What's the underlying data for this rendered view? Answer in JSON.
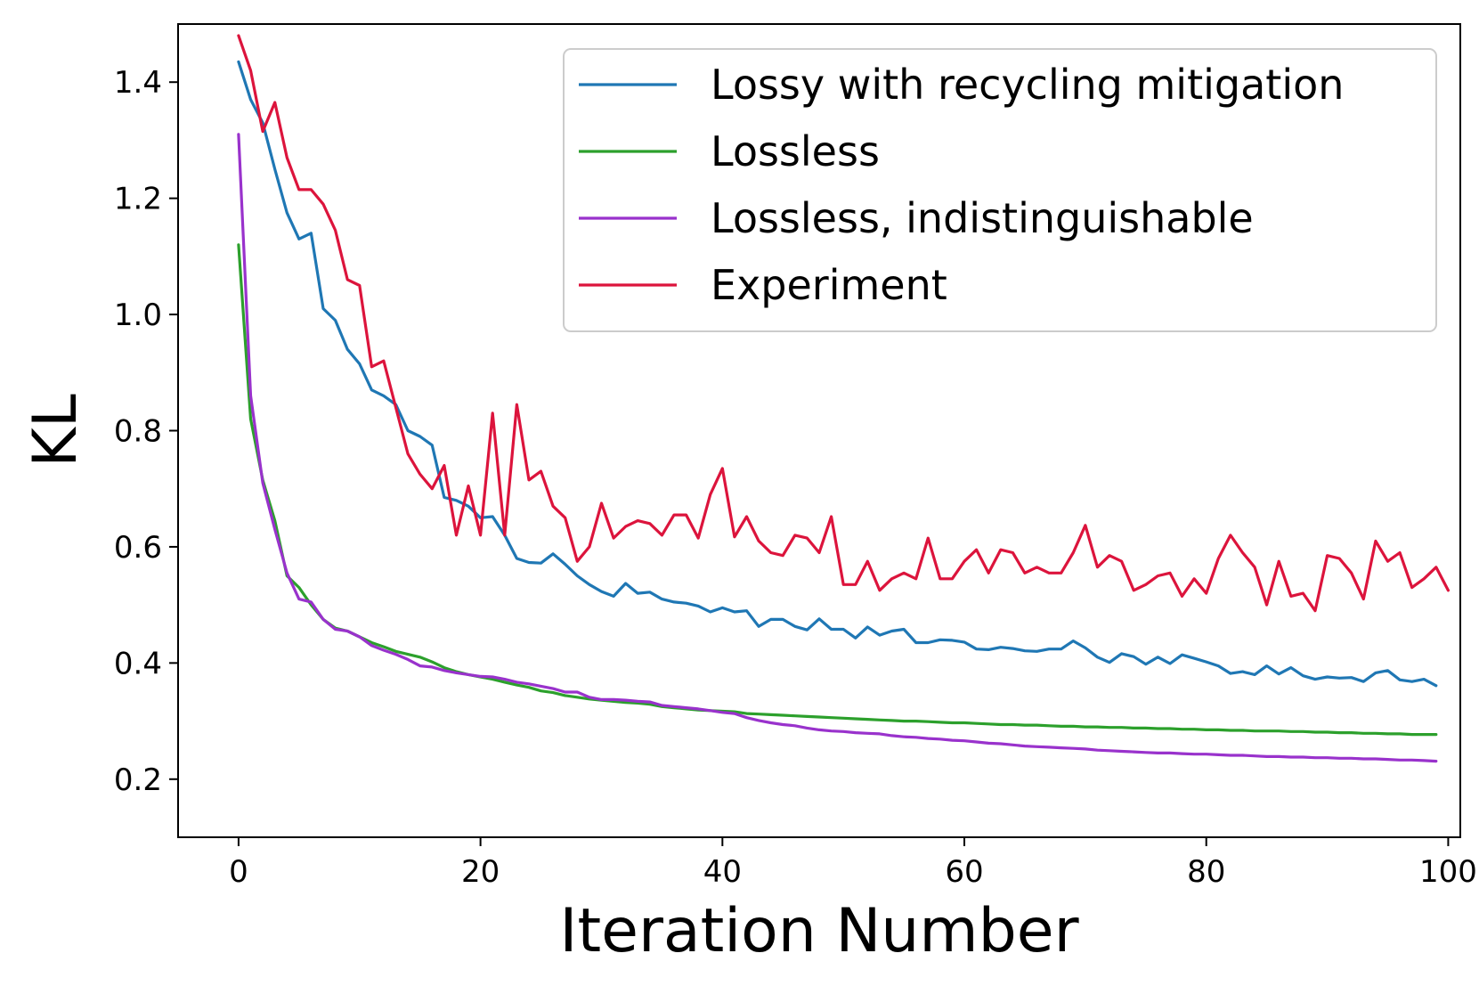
{
  "chart_data": {
    "type": "line",
    "title": "",
    "xlabel": "Iteration Number",
    "ylabel": "KL",
    "xlim": [
      -5,
      101
    ],
    "ylim": [
      0.1,
      1.5
    ],
    "xticks": [
      0,
      20,
      40,
      60,
      80,
      100
    ],
    "yticks": [
      0.2,
      0.4,
      0.6,
      0.8,
      1.0,
      1.2,
      1.4
    ],
    "xtick_labels": [
      "0",
      "20",
      "40",
      "60",
      "80",
      "100"
    ],
    "ytick_labels": [
      "0.2",
      "0.4",
      "0.6",
      "0.8",
      "1.0",
      "1.2",
      "1.4"
    ],
    "grid": false,
    "legend_position": "top-right",
    "series": [
      {
        "name": "Lossy with recycling mitigation",
        "color": "#1f77b4",
        "values": [
          1.435,
          1.37,
          1.33,
          1.25,
          1.175,
          1.13,
          1.14,
          1.01,
          0.99,
          0.94,
          0.915,
          0.87,
          0.86,
          0.845,
          0.8,
          0.79,
          0.775,
          0.685,
          0.68,
          0.67,
          0.65,
          0.652,
          0.62,
          0.58,
          0.573,
          0.572,
          0.588,
          0.57,
          0.55,
          0.535,
          0.523,
          0.515,
          0.537,
          0.52,
          0.522,
          0.51,
          0.505,
          0.503,
          0.498,
          0.488,
          0.495,
          0.488,
          0.49,
          0.463,
          0.475,
          0.475,
          0.463,
          0.457,
          0.476,
          0.458,
          0.458,
          0.443,
          0.462,
          0.448,
          0.455,
          0.458,
          0.435,
          0.435,
          0.44,
          0.439,
          0.436,
          0.424,
          0.423,
          0.427,
          0.425,
          0.421,
          0.42,
          0.424,
          0.424,
          0.438,
          0.426,
          0.41,
          0.401,
          0.416,
          0.411,
          0.398,
          0.41,
          0.399,
          0.414,
          0.408,
          0.402,
          0.395,
          0.382,
          0.385,
          0.38,
          0.395,
          0.381,
          0.392,
          0.378,
          0.372,
          0.376,
          0.374,
          0.375,
          0.368,
          0.383,
          0.387,
          0.371,
          0.368,
          0.372,
          0.361
        ]
      },
      {
        "name": "Lossless",
        "color": "#2ca02c",
        "values": [
          1.12,
          0.82,
          0.715,
          0.645,
          0.55,
          0.53,
          0.5,
          0.475,
          0.46,
          0.455,
          0.445,
          0.435,
          0.428,
          0.42,
          0.415,
          0.41,
          0.402,
          0.392,
          0.385,
          0.38,
          0.376,
          0.372,
          0.367,
          0.362,
          0.358,
          0.352,
          0.349,
          0.344,
          0.341,
          0.338,
          0.336,
          0.334,
          0.332,
          0.331,
          0.329,
          0.325,
          0.323,
          0.321,
          0.319,
          0.318,
          0.317,
          0.316,
          0.313,
          0.312,
          0.311,
          0.31,
          0.309,
          0.308,
          0.307,
          0.306,
          0.305,
          0.304,
          0.303,
          0.302,
          0.301,
          0.3,
          0.3,
          0.299,
          0.298,
          0.297,
          0.297,
          0.296,
          0.295,
          0.294,
          0.294,
          0.293,
          0.293,
          0.292,
          0.291,
          0.291,
          0.29,
          0.29,
          0.289,
          0.289,
          0.288,
          0.288,
          0.287,
          0.287,
          0.286,
          0.286,
          0.285,
          0.285,
          0.284,
          0.284,
          0.283,
          0.283,
          0.283,
          0.282,
          0.282,
          0.281,
          0.281,
          0.28,
          0.28,
          0.279,
          0.279,
          0.278,
          0.278,
          0.277,
          0.277,
          0.277
        ]
      },
      {
        "name": "Lossless, indistinguishable",
        "color": "#9932cc",
        "values": [
          1.31,
          0.86,
          0.71,
          0.63,
          0.555,
          0.51,
          0.505,
          0.475,
          0.458,
          0.455,
          0.445,
          0.43,
          0.422,
          0.415,
          0.406,
          0.395,
          0.393,
          0.387,
          0.383,
          0.38,
          0.377,
          0.376,
          0.372,
          0.367,
          0.364,
          0.36,
          0.356,
          0.35,
          0.35,
          0.341,
          0.337,
          0.337,
          0.336,
          0.334,
          0.333,
          0.327,
          0.325,
          0.323,
          0.321,
          0.318,
          0.315,
          0.313,
          0.306,
          0.301,
          0.297,
          0.294,
          0.292,
          0.288,
          0.285,
          0.283,
          0.282,
          0.28,
          0.279,
          0.278,
          0.275,
          0.273,
          0.272,
          0.27,
          0.269,
          0.267,
          0.266,
          0.264,
          0.262,
          0.261,
          0.259,
          0.257,
          0.256,
          0.255,
          0.254,
          0.253,
          0.252,
          0.25,
          0.249,
          0.248,
          0.247,
          0.246,
          0.245,
          0.245,
          0.244,
          0.243,
          0.243,
          0.242,
          0.241,
          0.241,
          0.24,
          0.239,
          0.239,
          0.238,
          0.238,
          0.237,
          0.237,
          0.236,
          0.236,
          0.235,
          0.235,
          0.234,
          0.233,
          0.233,
          0.232,
          0.231
        ]
      },
      {
        "name": "Experiment",
        "color": "#dc143c",
        "values": [
          1.48,
          1.42,
          1.315,
          1.365,
          1.27,
          1.215,
          1.215,
          1.19,
          1.145,
          1.06,
          1.05,
          0.91,
          0.92,
          0.84,
          0.76,
          0.725,
          0.7,
          0.74,
          0.62,
          0.705,
          0.62,
          0.83,
          0.62,
          0.845,
          0.715,
          0.73,
          0.67,
          0.65,
          0.575,
          0.6,
          0.675,
          0.615,
          0.635,
          0.645,
          0.64,
          0.62,
          0.655,
          0.655,
          0.615,
          0.69,
          0.735,
          0.617,
          0.652,
          0.61,
          0.59,
          0.585,
          0.62,
          0.615,
          0.59,
          0.652,
          0.535,
          0.535,
          0.575,
          0.525,
          0.545,
          0.555,
          0.545,
          0.615,
          0.545,
          0.545,
          0.575,
          0.595,
          0.555,
          0.595,
          0.59,
          0.555,
          0.565,
          0.555,
          0.555,
          0.59,
          0.637,
          0.565,
          0.585,
          0.575,
          0.525,
          0.535,
          0.55,
          0.555,
          0.515,
          0.545,
          0.52,
          0.58,
          0.62,
          0.59,
          0.565,
          0.5,
          0.575,
          0.515,
          0.52,
          0.49,
          0.585,
          0.58,
          0.555,
          0.51,
          0.61,
          0.575,
          0.59,
          0.53,
          0.545,
          0.565,
          0.525
        ]
      }
    ]
  }
}
